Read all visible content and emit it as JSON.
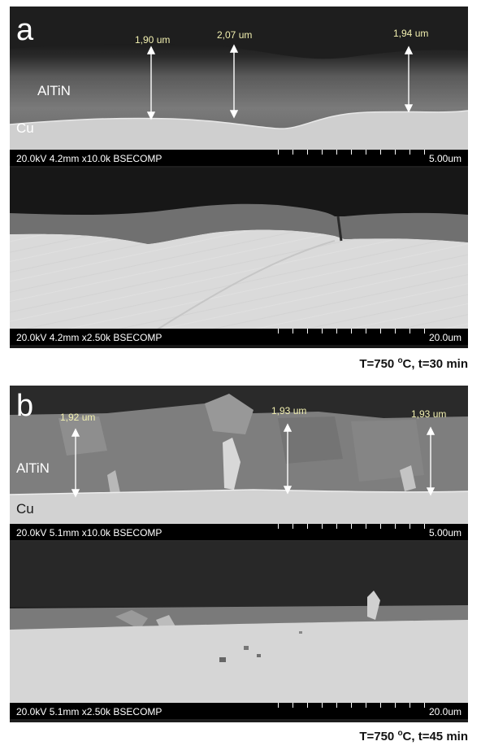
{
  "panel_a": {
    "letter": "a",
    "layer_label": "AlTiN",
    "substrate_label": "Cu",
    "measurements": [
      "1,90 um",
      "2,07 um",
      "1,94 um"
    ],
    "top_image": {
      "info": "20.0kV 4.2mm x10.0k BSECOMP",
      "scale": "5.00um"
    },
    "bottom_image": {
      "info": "20.0kV 4.2mm x2.50k BSECOMP",
      "scale": "20.0um"
    },
    "condition": {
      "prefix": "T=750 ",
      "unit_sup": "o",
      "suffix": "C, t=30 min"
    }
  },
  "panel_b": {
    "letter": "b",
    "layer_label": "AlTiN",
    "substrate_label": "Cu",
    "measurements": [
      "1,92 um",
      "1,93 um",
      "1,93 um"
    ],
    "top_image": {
      "info": "20.0kV 5.1mm x10.0k BSECOMP",
      "scale": "5.00um"
    },
    "bottom_image": {
      "info": "20.0kV 5.1mm x2.50k BSECOMP",
      "scale": "20.0um"
    },
    "condition": {
      "prefix": "T=750 ",
      "unit_sup": "o",
      "suffix": "C, t=45 min"
    }
  },
  "colors": {
    "background": "#ffffff",
    "coating_gray": "#6e6e6e",
    "copper_light": "#d4d4d4",
    "measurement_text": "#f2f0b0",
    "info_bar": "#000000"
  }
}
